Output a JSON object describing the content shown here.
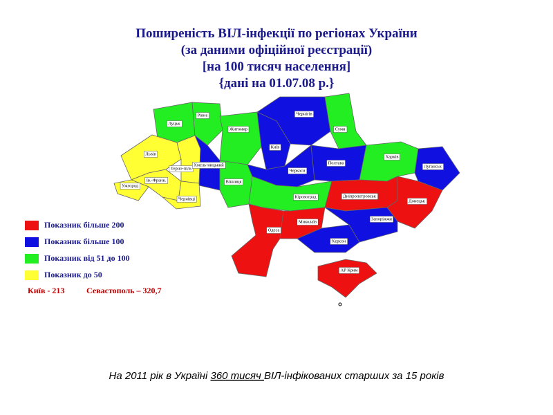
{
  "title_lines": [
    "Поширеність ВІЛ-інфекції по регіонах України",
    "(за даними офіційної реєстрації)",
    "[на 100 тисяч населення]",
    "{дані на 01.07.08 р.}"
  ],
  "regions": [
    {
      "label": "Луцьк",
      "color": "#22ee22"
    },
    {
      "label": "Рівне",
      "color": "#22ee22"
    },
    {
      "label": "Житомир",
      "color": "#22ee22"
    },
    {
      "label": "Чернігів",
      "color": "#1010e0"
    },
    {
      "label": "Суми",
      "color": "#22ee22"
    },
    {
      "label": "Київ",
      "color": "#1010e0"
    },
    {
      "label": "Львів",
      "color": "#ffff33"
    },
    {
      "label": "Терно-піль",
      "color": "#ffff33"
    },
    {
      "label": "Хмель-ницький",
      "color": "#1010e0"
    },
    {
      "label": "Вінниця",
      "color": "#22ee22"
    },
    {
      "label": "Черкаси",
      "color": "#1010e0"
    },
    {
      "label": "Полтава",
      "color": "#1010e0"
    },
    {
      "label": "Харків",
      "color": "#22ee22"
    },
    {
      "label": "Луганськ",
      "color": "#1010e0"
    },
    {
      "label": "Ів.-Франк.",
      "color": "#ffff33"
    },
    {
      "label": "Ужгород",
      "color": "#ffff33"
    },
    {
      "label": "Чернівці",
      "color": "#ffff33"
    },
    {
      "label": "Кіровоград",
      "color": "#22ee22"
    },
    {
      "label": "Дніпропетровськ",
      "color": "#ee1111"
    },
    {
      "label": "Донецьк",
      "color": "#ee1111"
    },
    {
      "label": "Одеса",
      "color": "#ee1111"
    },
    {
      "label": "Миколаїв",
      "color": "#ee1111"
    },
    {
      "label": "Запоріжжя",
      "color": "#1010e0"
    },
    {
      "label": "Херсон",
      "color": "#1010e0"
    },
    {
      "label": "АР Крим",
      "color": "#ee1111"
    }
  ],
  "legend": [
    {
      "label": "Показник більше 200",
      "color": "#ee1111"
    },
    {
      "label": "Показник більше 100",
      "color": "#1010e0"
    },
    {
      "label": "Показник від 51 до 100",
      "color": "#22ee22"
    },
    {
      "label": "Показник до 50",
      "color": "#ffff33"
    }
  ],
  "notes": [
    "Київ - 213",
    "Севастополь – 320,7"
  ],
  "footer": {
    "before": "На 2011 рік в Україні ",
    "underlined": "360 тисяч ",
    "after": "ВІЛ-інфікованих старших за 15 років"
  }
}
